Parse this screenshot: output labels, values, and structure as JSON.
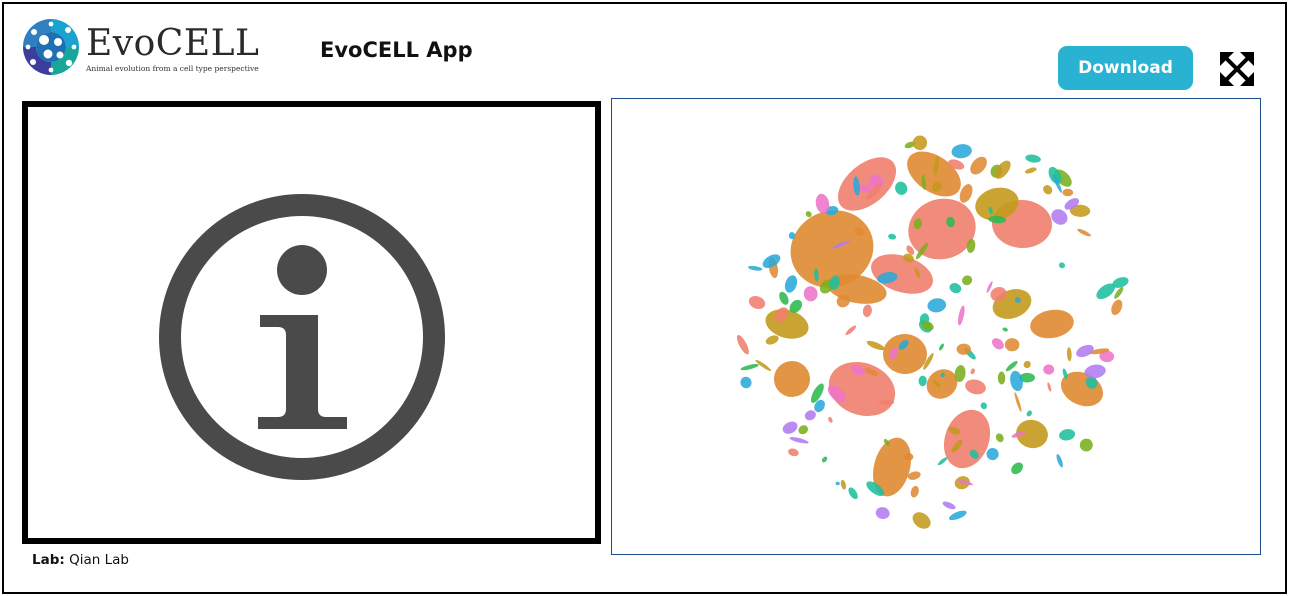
{
  "header": {
    "logo_name": "EvoCELL",
    "logo_tagline": "Animal evolution from a cell type perspective",
    "app_title": "EvoCELL App",
    "download_label": "Download"
  },
  "icons": {
    "fullscreen": "expand-arrows-icon",
    "info": "info-circle-icon",
    "logo": "evocell-logo-icon"
  },
  "lab": {
    "label": "Lab:",
    "value": "Qian Lab"
  },
  "colors": {
    "download_bg": "#29b2d1",
    "panel_border": "#1d4e89",
    "info_icon": "#4a4a4a",
    "cluster_palette": [
      "#f07e6e",
      "#e08a32",
      "#c49a1c",
      "#7aaf1e",
      "#2cba4f",
      "#1ebf9e",
      "#2aa9d8",
      "#b07cf0",
      "#ee74c8"
    ]
  }
}
